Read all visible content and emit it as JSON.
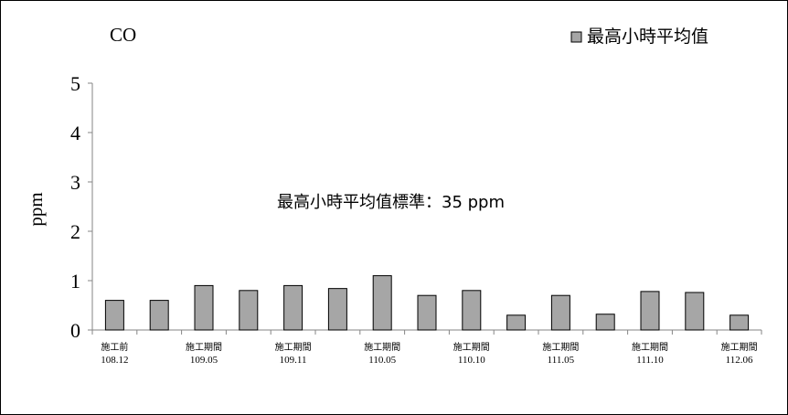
{
  "chart_data": {
    "type": "bar",
    "title": "CO",
    "ylabel": "ppm",
    "xlabel": "",
    "ylim": [
      0,
      5
    ],
    "yticks": [
      0,
      1,
      2,
      3,
      4,
      5
    ],
    "categories": [
      "108.12",
      "",
      "109.05",
      "",
      "109.11",
      "",
      "110.05",
      "",
      "110.10",
      "",
      "111.05",
      "",
      "111.10",
      "",
      "112.06"
    ],
    "category_prefixes": [
      "施工前",
      "",
      "施工期間",
      "",
      "施工期間",
      "",
      "施工期間",
      "",
      "施工期間",
      "",
      "施工期間",
      "",
      "施工期間",
      "",
      "施工期間"
    ],
    "series": [
      {
        "name": "最高小時平均值",
        "values": [
          0.6,
          0.6,
          0.9,
          0.8,
          0.9,
          0.84,
          1.1,
          0.7,
          0.8,
          0.3,
          0.7,
          0.32,
          0.78,
          0.76,
          0.3
        ]
      }
    ],
    "annotation": "最高小時平均值標準：35 ppm",
    "legend_position": "top-right",
    "bar_color": "#a6a6a6",
    "grid": false
  }
}
